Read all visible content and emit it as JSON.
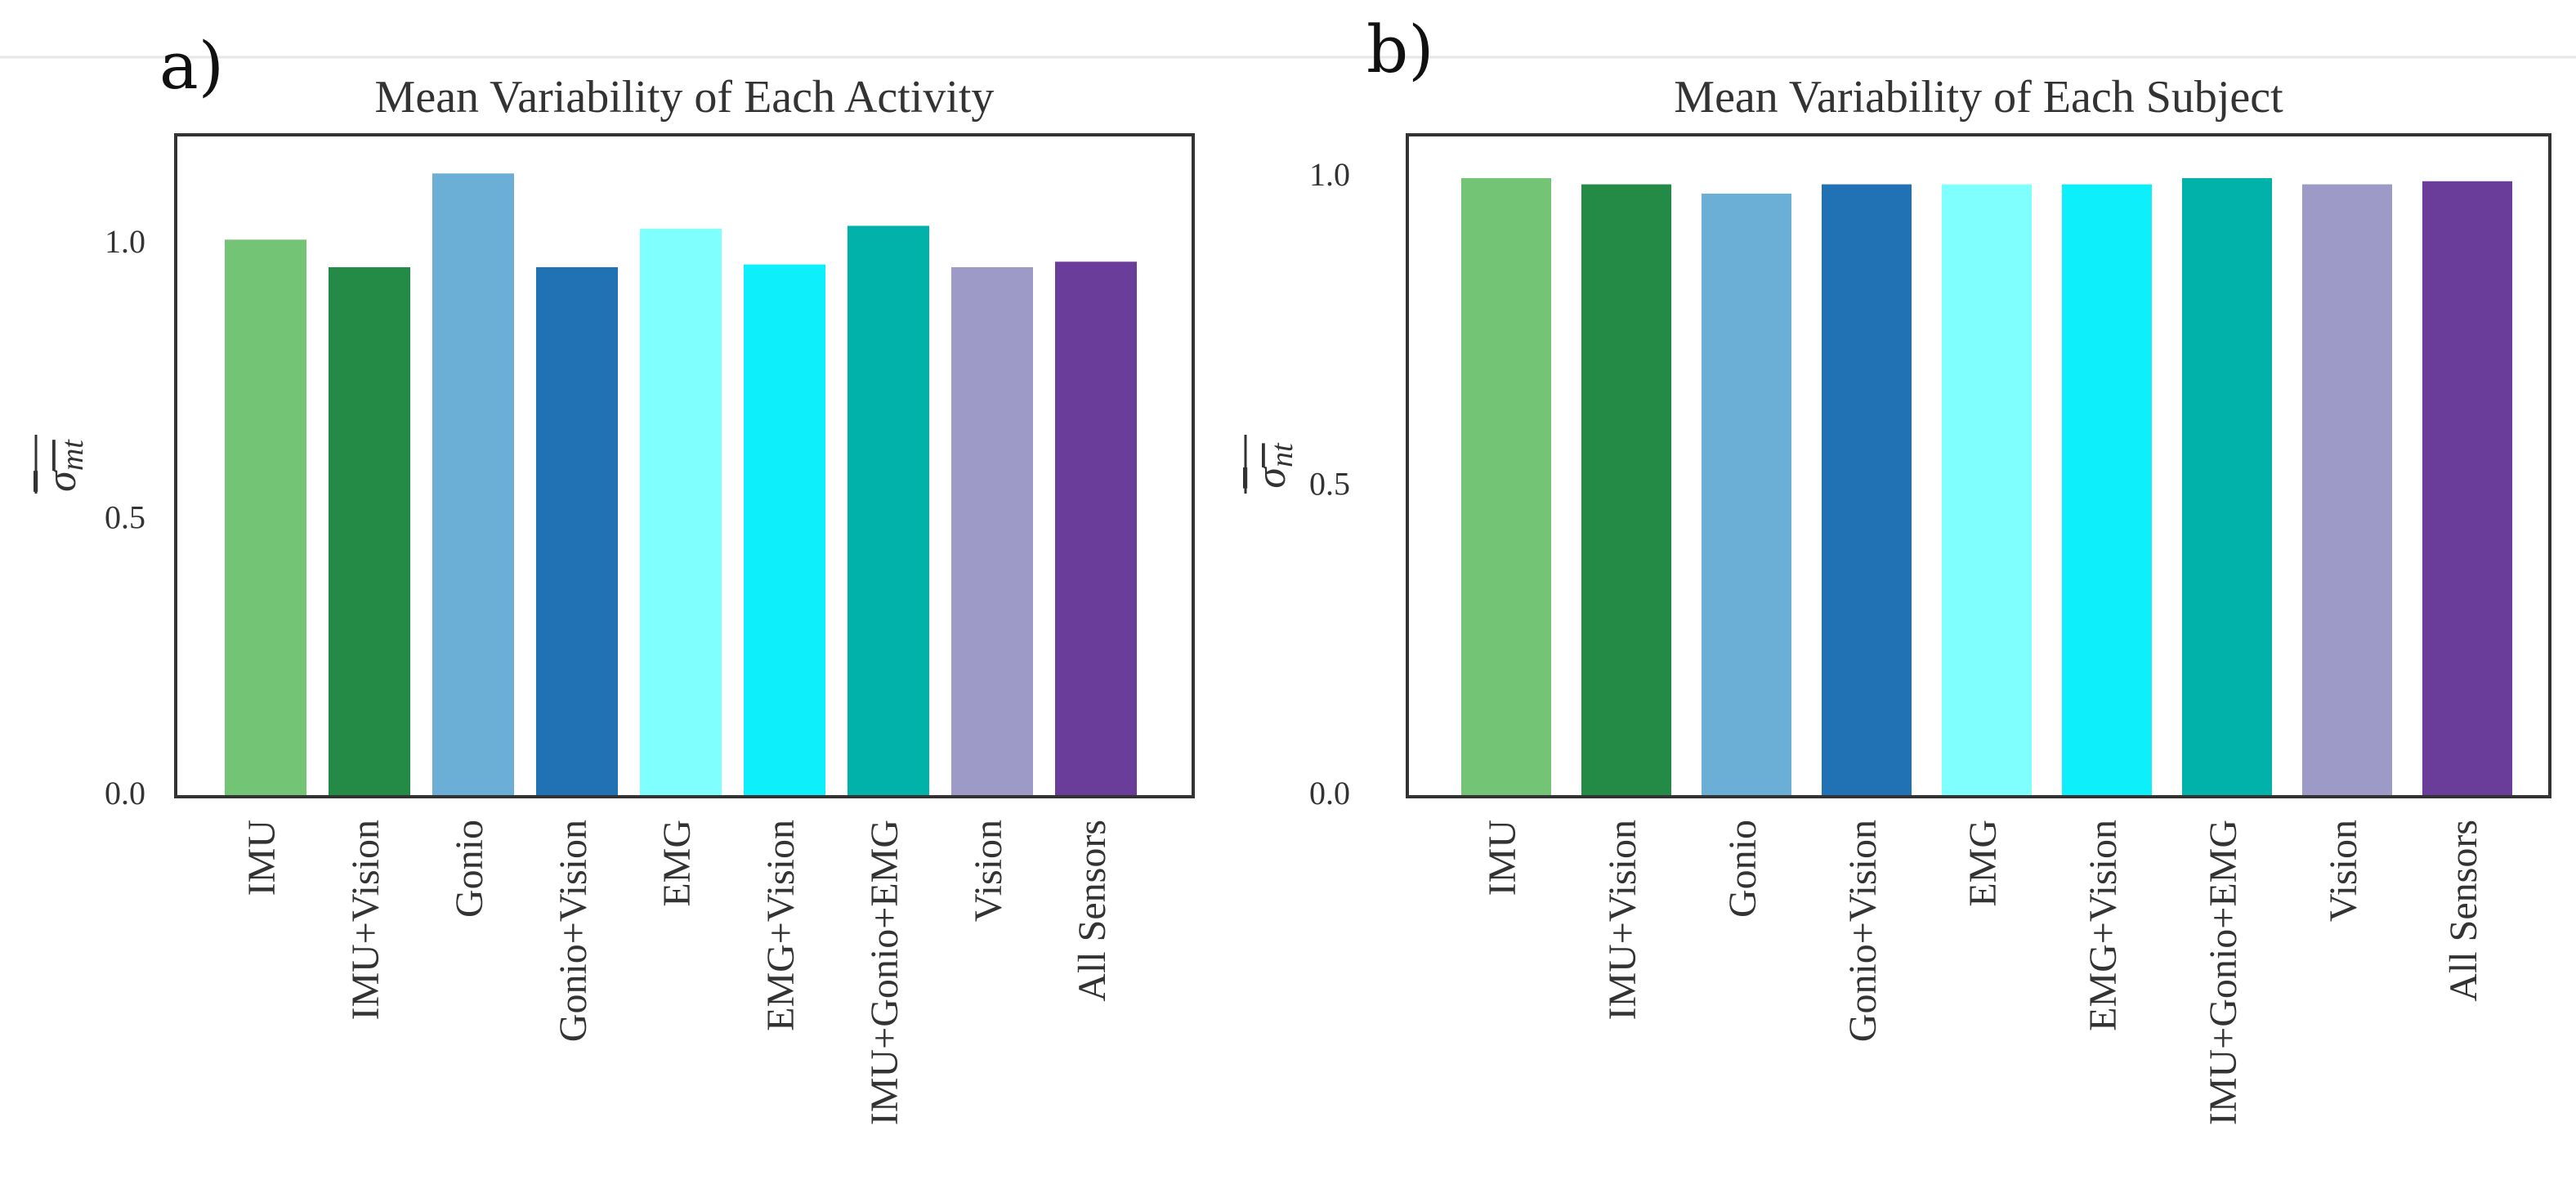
{
  "panel_labels": [
    "a)",
    "b)"
  ],
  "chart_data": [
    {
      "type": "bar",
      "title": "Mean Variability of Each Activity",
      "ylabel": "σ_mt",
      "ylabel_base": "σ",
      "ylabel_sub": "mt",
      "xlabel": "",
      "ylim": [
        0,
        1.2
      ],
      "yticks": [
        "0.0",
        "0.5",
        "1.0"
      ],
      "ytick_values": [
        0,
        0.5,
        1.0
      ],
      "categories": [
        "IMU",
        "IMU+Vision",
        "Gonio",
        "Gonio+Vision",
        "EMG",
        "EMG+Vision",
        "IMU+Gonio+EMG",
        "Vision",
        "All Sensors"
      ],
      "values": [
        1.01,
        0.96,
        1.13,
        0.96,
        1.03,
        0.965,
        1.035,
        0.96,
        0.97
      ],
      "colors": [
        "#74c476",
        "#238b45",
        "#6baed6",
        "#2171b5",
        "#80ffff",
        "#0eeffc",
        "#00b2a9",
        "#9e9ac8",
        "#6a3d9a"
      ]
    },
    {
      "type": "bar",
      "title": "Mean Variability of Each Subject",
      "ylabel": "σ_nt",
      "ylabel_base": "σ",
      "ylabel_sub": "nt",
      "xlabel": "",
      "ylim": [
        0,
        1.07
      ],
      "yticks": [
        "0.0",
        "0.5",
        "1.0"
      ],
      "ytick_values": [
        0,
        0.5,
        1.0
      ],
      "categories": [
        "IMU",
        "IMU+Vision",
        "Gonio",
        "Gonio+Vision",
        "EMG",
        "EMG+Vision",
        "IMU+Gonio+EMG",
        "Vision",
        "All Sensors"
      ],
      "values": [
        1.0,
        0.99,
        0.975,
        0.99,
        0.99,
        0.99,
        1.0,
        0.99,
        0.995
      ],
      "colors": [
        "#74c476",
        "#238b45",
        "#6baed6",
        "#2171b5",
        "#80ffff",
        "#0eeffc",
        "#00b2a9",
        "#9e9ac8",
        "#6a3d9a"
      ]
    }
  ]
}
